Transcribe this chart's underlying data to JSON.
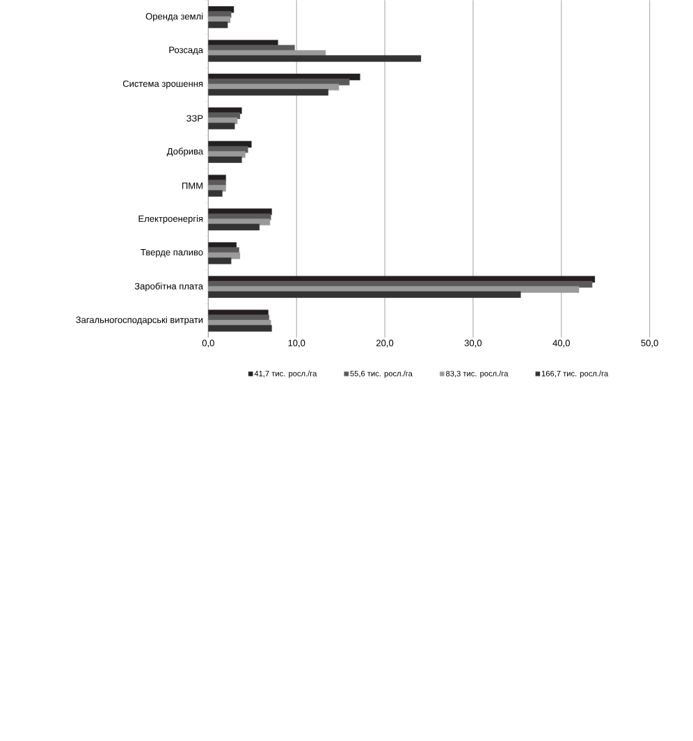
{
  "chart_data": {
    "type": "bar",
    "orientation": "horizontal",
    "categories": [
      "Оренда землі",
      "Розсада",
      "Система зрошення",
      "ЗЗР",
      "Добрива",
      "ПММ",
      "Електроенергія",
      "Тверде паливо",
      "Заробітна плата",
      "Загальногосподарські витрати"
    ],
    "series": [
      {
        "name": "41,7 тис. росл./га",
        "color": "#231f20",
        "values": [
          2.9,
          7.9,
          17.2,
          3.8,
          4.9,
          2.0,
          7.2,
          3.2,
          43.8,
          6.8
        ]
      },
      {
        "name": "55,6 тис. росл./га",
        "color": "#5a5a5a",
        "values": [
          2.6,
          9.8,
          16.0,
          3.6,
          4.5,
          2.0,
          7.1,
          3.5,
          43.5,
          6.9
        ]
      },
      {
        "name": "83,3 тис. росл./га",
        "color": "#9a9a9a",
        "values": [
          2.5,
          13.3,
          14.8,
          3.3,
          4.2,
          2.0,
          7.0,
          3.6,
          42.0,
          7.1
        ]
      },
      {
        "name": "166,7 тис. росл./га",
        "color": "#333333",
        "values": [
          2.2,
          24.1,
          13.6,
          3.0,
          3.8,
          1.6,
          5.8,
          2.6,
          35.4,
          7.2
        ]
      }
    ],
    "xlim": [
      0,
      50
    ],
    "xticks": [
      {
        "value": 0,
        "label": "0,0"
      },
      {
        "value": 10,
        "label": "10,0"
      },
      {
        "value": 20,
        "label": "20,0"
      },
      {
        "value": 30,
        "label": "30,0"
      },
      {
        "value": 40,
        "label": "40,0"
      },
      {
        "value": 50,
        "label": "50,0"
      }
    ],
    "grid": "x",
    "legend": "bottom"
  }
}
